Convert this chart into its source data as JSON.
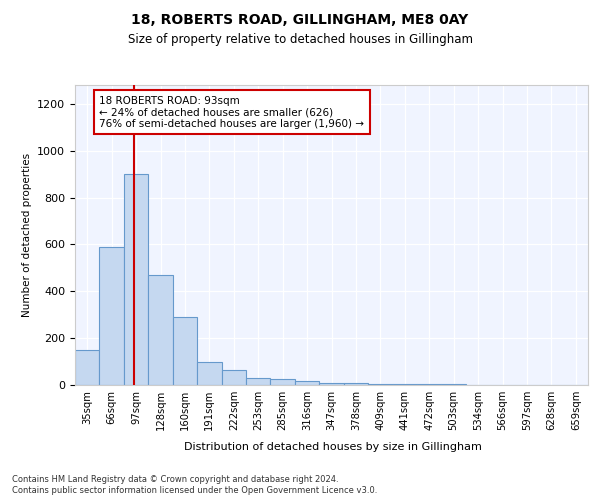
{
  "title1": "18, ROBERTS ROAD, GILLINGHAM, ME8 0AY",
  "title2": "Size of property relative to detached houses in Gillingham",
  "xlabel": "Distribution of detached houses by size in Gillingham",
  "ylabel": "Number of detached properties",
  "bar_labels": [
    "35sqm",
    "66sqm",
    "97sqm",
    "128sqm",
    "160sqm",
    "191sqm",
    "222sqm",
    "253sqm",
    "285sqm",
    "316sqm",
    "347sqm",
    "378sqm",
    "409sqm",
    "441sqm",
    "472sqm",
    "503sqm",
    "534sqm",
    "566sqm",
    "597sqm",
    "628sqm",
    "659sqm"
  ],
  "bar_values": [
    150,
    590,
    900,
    470,
    290,
    100,
    65,
    30,
    25,
    15,
    10,
    7,
    5,
    4,
    3,
    3,
    2,
    2,
    2,
    2,
    2
  ],
  "bar_color": "#c5d8f0",
  "bar_edge_color": "#6699cc",
  "vline_x": 2.0,
  "vline_color": "#cc0000",
  "annotation_text": "18 ROBERTS ROAD: 93sqm\n← 24% of detached houses are smaller (626)\n76% of semi-detached houses are larger (1,960) →",
  "annotation_box_color": "#ffffff",
  "annotation_box_edge": "#cc0000",
  "ylim": [
    0,
    1280
  ],
  "yticks": [
    0,
    200,
    400,
    600,
    800,
    1000,
    1200
  ],
  "footnote1": "Contains HM Land Registry data © Crown copyright and database right 2024.",
  "footnote2": "Contains public sector information licensed under the Open Government Licence v3.0.",
  "bg_color": "#ffffff",
  "plot_bg_color": "#f0f4ff"
}
